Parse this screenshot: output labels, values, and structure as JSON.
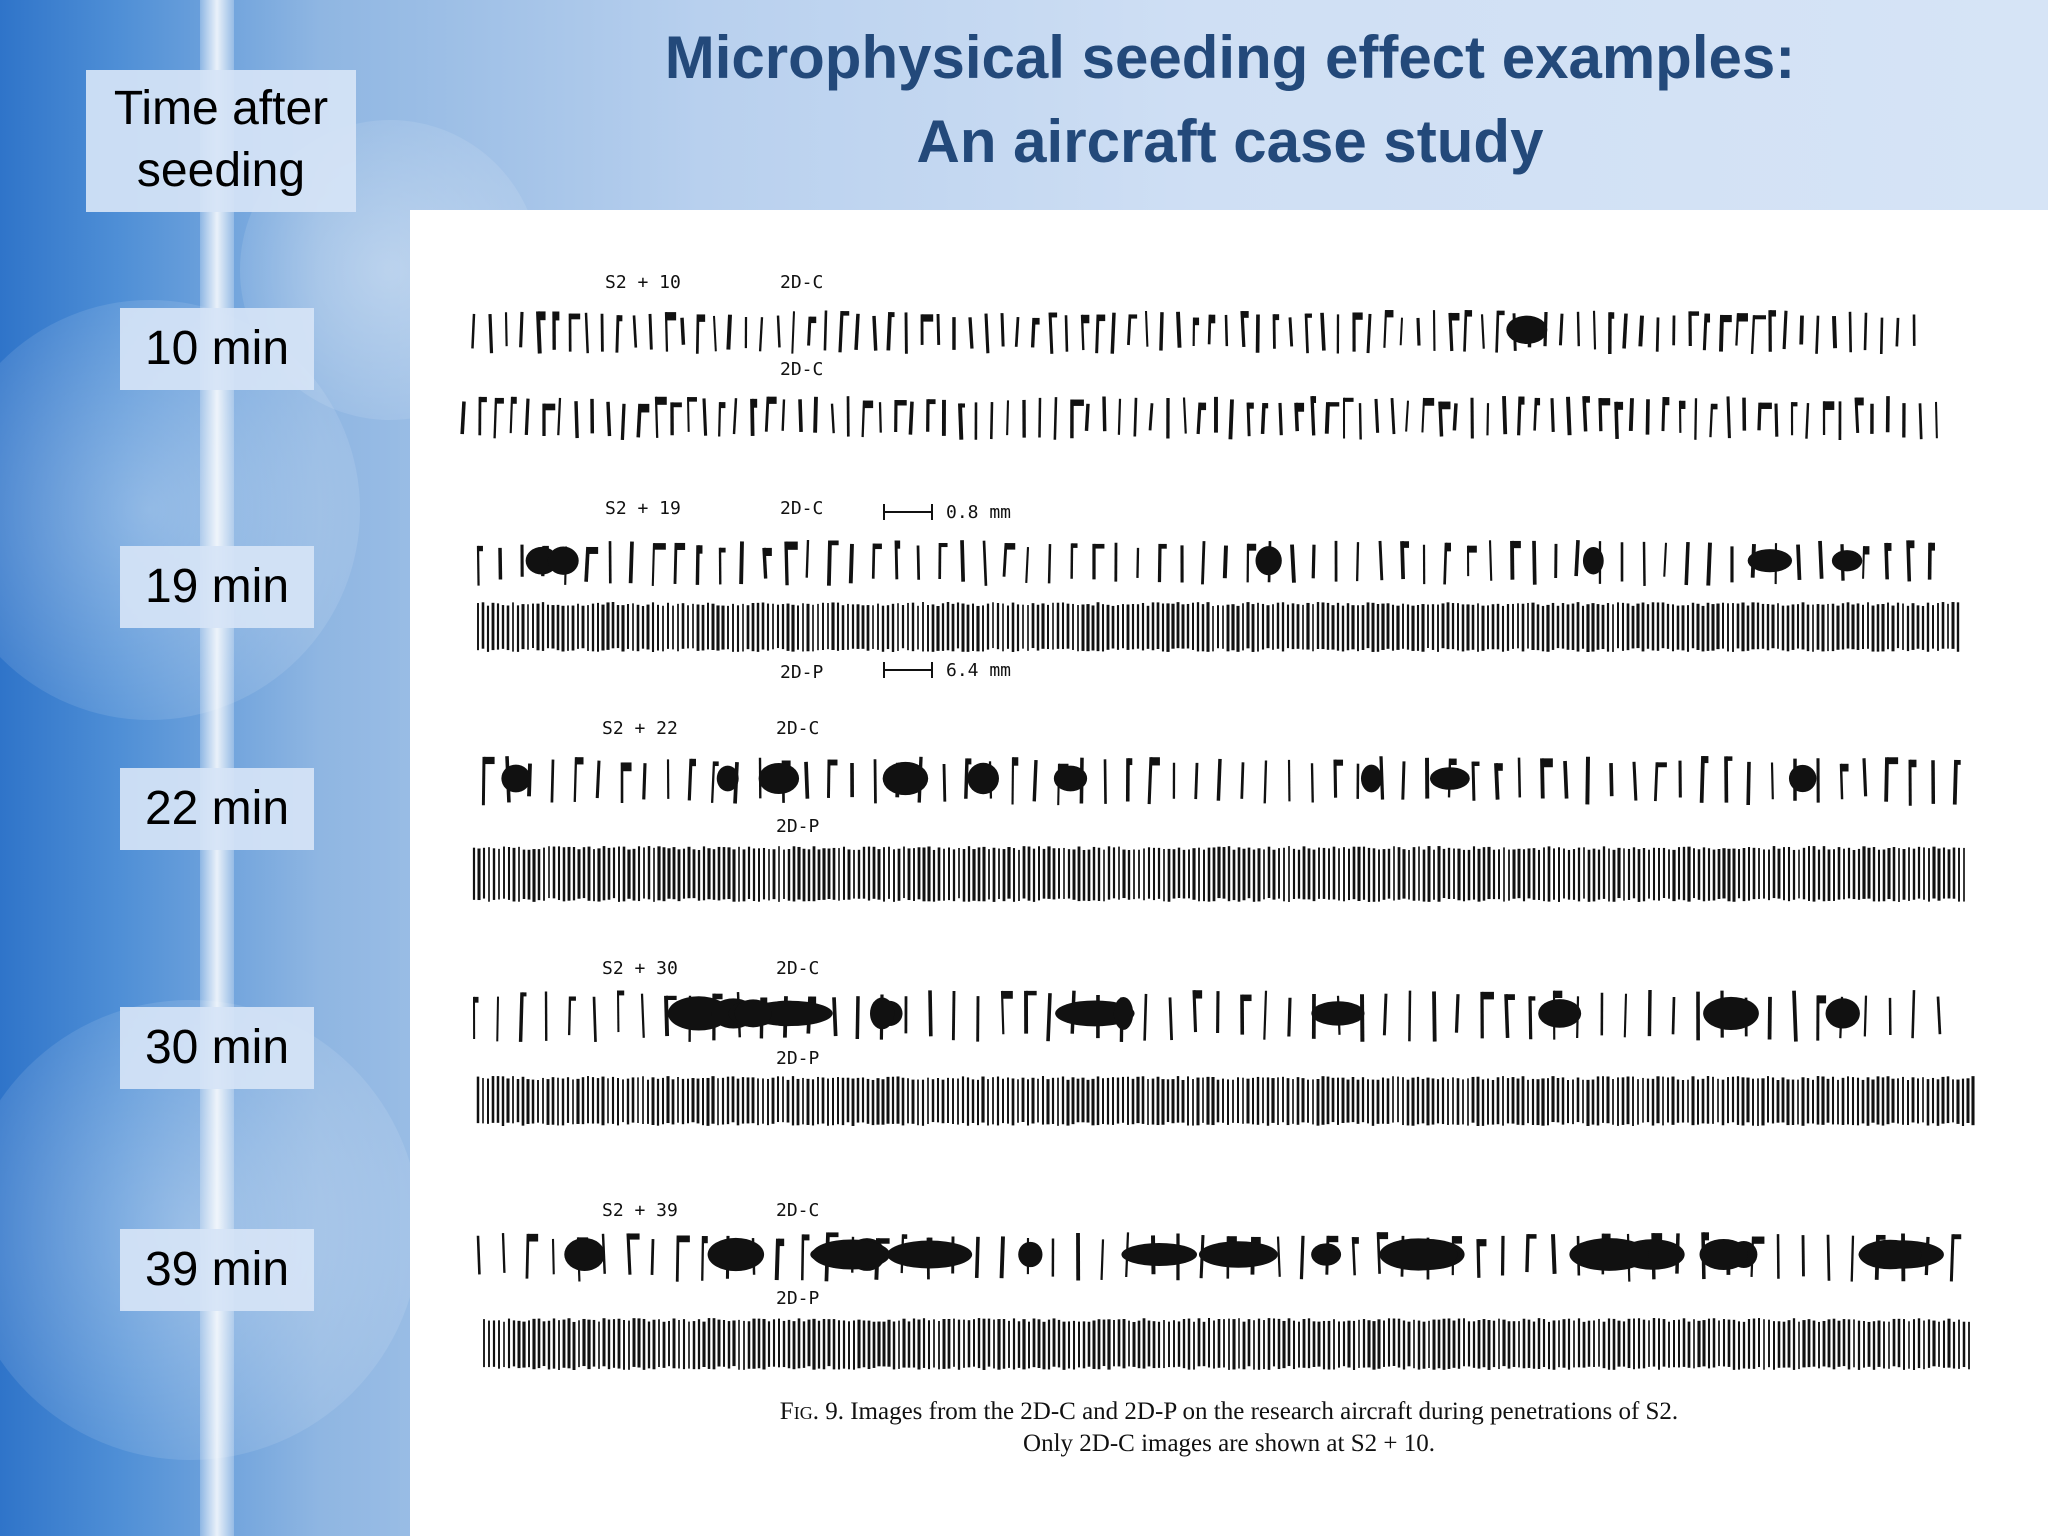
{
  "title": {
    "line1": "Microphysical seeding effect examples:",
    "line2": "An aircraft case study"
  },
  "sidebar": {
    "header": {
      "line1": "Time after",
      "line2": "seeding"
    },
    "times": [
      "10 min",
      "19 min",
      "22 min",
      "30 min",
      "39 min"
    ]
  },
  "figure": {
    "panels": [
      {
        "label": "S2 + 10",
        "top_probe": "2D-C",
        "bottom_probe": "2D-C",
        "scale": ""
      },
      {
        "label": "S2 + 19",
        "top_probe": "2D-C",
        "bottom_probe": "2D-P",
        "scale_top": "0.8 mm",
        "scale_bottom": "6.4 mm"
      },
      {
        "label": "S2 + 22",
        "top_probe": "2D-C",
        "bottom_probe": "2D-P"
      },
      {
        "label": "S2 + 30",
        "top_probe": "2D-C",
        "bottom_probe": "2D-P"
      },
      {
        "label": "S2 + 39",
        "top_probe": "2D-C",
        "bottom_probe": "2D-P"
      }
    ],
    "caption": {
      "fig_label": "Fig",
      "fig_number": ". 9.",
      "line1": "Images from the 2D-C and 2D-P on the research aircraft during penetrations of S2.",
      "line2": "Only 2D-C images are shown at S2 + 10."
    }
  }
}
